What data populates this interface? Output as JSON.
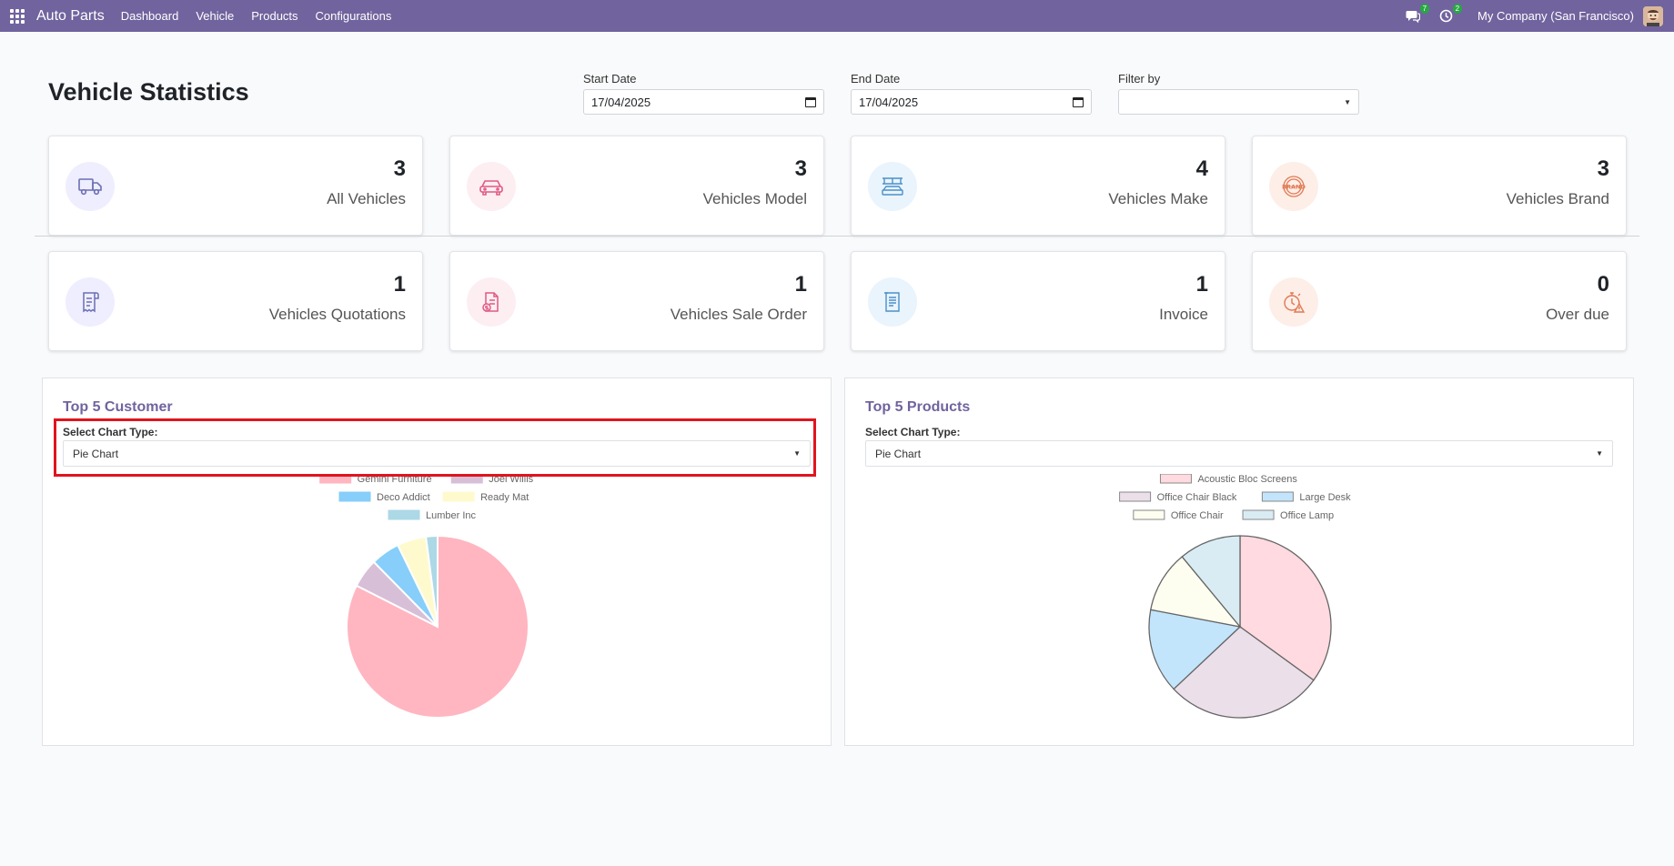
{
  "navbar": {
    "brand": "Auto Parts",
    "items": [
      "Dashboard",
      "Vehicle",
      "Products",
      "Configurations"
    ],
    "messages_badge": "7",
    "activity_badge": "2",
    "company": "My Company (San Francisco)"
  },
  "page": {
    "title": "Vehicle Statistics",
    "start_date_label": "Start Date",
    "start_date_value": "17/04/2025",
    "end_date_label": "End Date",
    "end_date_value": "17/04/2025",
    "filter_label": "Filter by",
    "filter_value": ""
  },
  "cards": [
    {
      "value": "3",
      "label": "All Vehicles",
      "icon": "truck-icon",
      "bg": "#eeeeff",
      "color": "#6c6fb3"
    },
    {
      "value": "3",
      "label": "Vehicles Model",
      "icon": "car-icon",
      "bg": "#fdeef2",
      "color": "#e05a83"
    },
    {
      "value": "4",
      "label": "Vehicles Make",
      "icon": "factory-icon",
      "bg": "#e9f4fd",
      "color": "#4a90c8"
    },
    {
      "value": "3",
      "label": "Vehicles Brand",
      "icon": "brand-icon",
      "bg": "#fdeee7",
      "color": "#e07a55"
    },
    {
      "value": "1",
      "label": "Vehicles Quotations",
      "icon": "receipt-icon",
      "bg": "#eeeeff",
      "color": "#6c6fb3"
    },
    {
      "value": "1",
      "label": "Vehicles Sale Order",
      "icon": "invoice-dollar-icon",
      "bg": "#fdeef2",
      "color": "#e05a83"
    },
    {
      "value": "1",
      "label": "Invoice",
      "icon": "document-icon",
      "bg": "#e9f4fd",
      "color": "#4a90c8"
    },
    {
      "value": "0",
      "label": "Over due",
      "icon": "timer-alert-icon",
      "bg": "#fdeee7",
      "color": "#e07a55"
    }
  ],
  "customer_panel": {
    "title": "Top 5 Customer",
    "select_label": "Select Chart Type:",
    "select_value": "Pie Chart"
  },
  "products_panel": {
    "title": "Top 5 Products",
    "select_label": "Select Chart Type:",
    "select_value": "Pie Chart"
  },
  "chart_data": [
    {
      "type": "pie",
      "title": "",
      "legend_position": "top",
      "categories": [
        "Gemini Furniture",
        "Joel Willis",
        "Deco Addict",
        "Ready Mat",
        "Lumber Inc"
      ],
      "values": [
        80,
        5,
        5,
        5,
        2
      ],
      "colors": [
        "#ffb6c1",
        "#d8bfd8",
        "#87cefa",
        "#fffacd",
        "#add8e6"
      ]
    },
    {
      "type": "pie",
      "title": "",
      "legend_position": "top",
      "categories": [
        "Acoustic Bloc Screens",
        "Office Chair Black",
        "Large Desk",
        "Office Chair",
        "Office Lamp"
      ],
      "values": [
        35,
        28,
        15,
        11,
        11
      ],
      "colors": [
        "#ffdae0",
        "#ebdfea",
        "#c3e5fb",
        "#fefef0",
        "#d9ecf3"
      ]
    }
  ]
}
